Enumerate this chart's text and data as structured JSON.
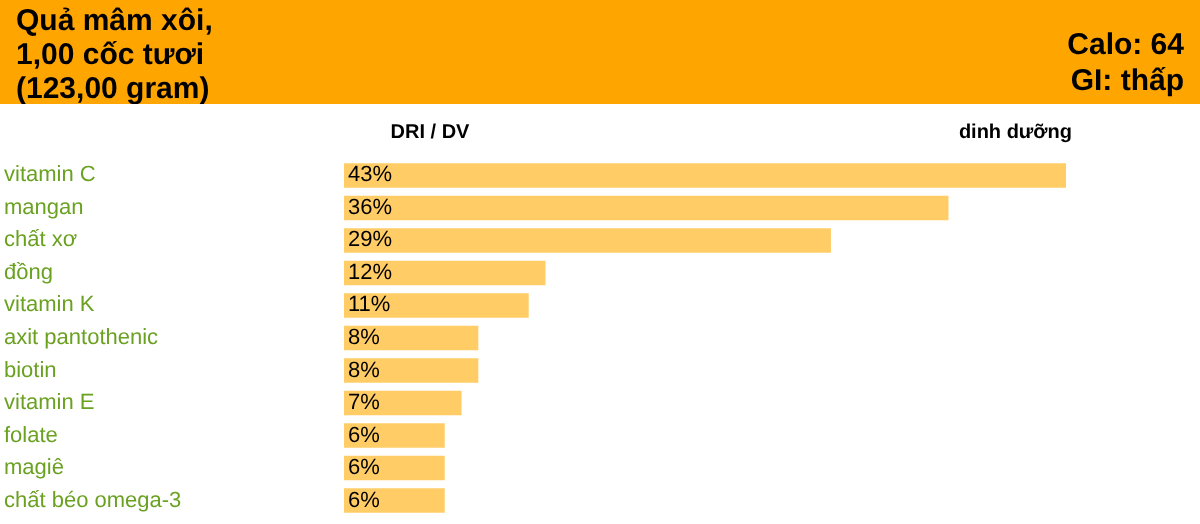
{
  "chart_data": {
    "type": "bar",
    "orientation": "horizontal",
    "title": "Quả mâm xôi,\n1,00 cốc tươi\n(123,00 gram)",
    "annotations": [
      "Calo: 64",
      "GI: thấp",
      "DRI / DV",
      "dinh dưỡng"
    ],
    "categories": [
      "vitamin C",
      "mangan",
      "chất xơ",
      "đồng",
      "vitamin K",
      "axit pantothenic",
      "biotin",
      "vitamin E",
      "folate",
      "magiê",
      "chất béo omega-3"
    ],
    "values": [
      43,
      36,
      29,
      12,
      11,
      8,
      8,
      7,
      6,
      6,
      6
    ],
    "value_labels": [
      "43%",
      "36%",
      "29%",
      "12%",
      "11%",
      "8%",
      "8%",
      "7%",
      "6%",
      "6%",
      "6%"
    ],
    "color": "#ffcc66",
    "tick_labels": "y",
    "grid": false
  }
}
